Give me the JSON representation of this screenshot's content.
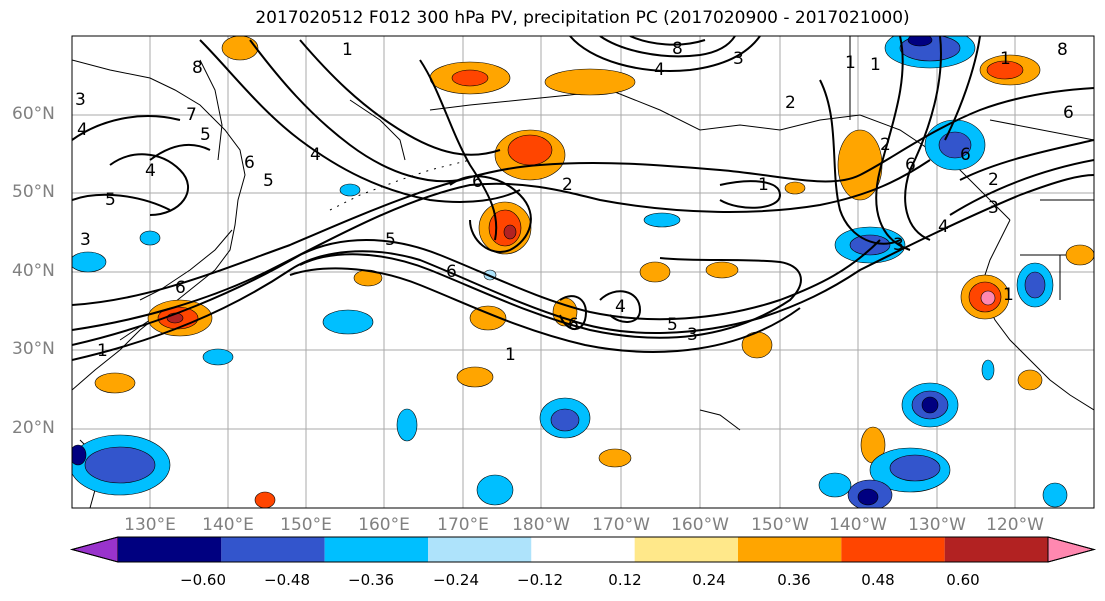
{
  "title": "2017020512 F012 300 hPa PV, precipitation PC (2017020900 - 2017021000)",
  "lat_labels": [
    "60°N",
    "50°N",
    "40°N",
    "30°N",
    "20°N"
  ],
  "lon_labels": [
    "130°E",
    "140°E",
    "150°E",
    "160°E",
    "170°E",
    "180°W",
    "170°W",
    "160°W",
    "150°W",
    "140°W",
    "130°W",
    "120°W"
  ],
  "colorbar": {
    "colors": [
      "#9933cc",
      "#000080",
      "#3355cc",
      "#00bfff",
      "#aee3fb",
      "#ffffff",
      "#ffe88a",
      "#ffa500",
      "#ff4500",
      "#b22222",
      "#ff88b0"
    ],
    "tick_labels": [
      "−0.60",
      "−0.48",
      "−0.36",
      "−0.24",
      "−0.12",
      "0.12",
      "0.24",
      "0.36",
      "0.48",
      "0.60"
    ]
  },
  "contour_labels": [
    "1",
    "8",
    "7",
    "6",
    "5",
    "4",
    "3",
    "1",
    "8",
    "4",
    "3",
    "2",
    "1",
    "6",
    "2",
    "5",
    "4",
    "6",
    "5",
    "3",
    "1",
    "6",
    "4",
    "5",
    "3",
    "1",
    "6",
    "1",
    "3",
    "2",
    "1",
    "6",
    "8",
    "6",
    "4",
    "3",
    "2",
    "1",
    "6",
    "5",
    "4"
  ]
}
